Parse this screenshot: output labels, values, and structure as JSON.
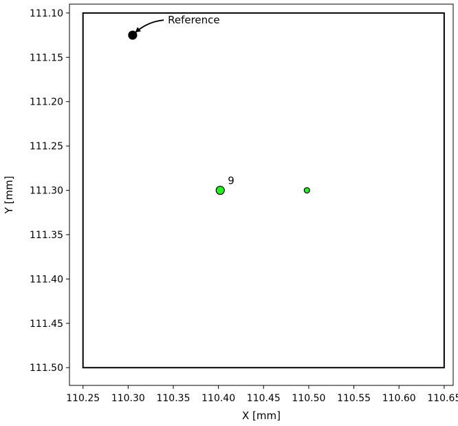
{
  "chart_data": {
    "type": "scatter",
    "xlabel": "X [mm]",
    "ylabel": "Y [mm]",
    "xlim": [
      110.235,
      110.66
    ],
    "ylim": [
      111.52,
      111.09
    ],
    "y_inverted": true,
    "grid": false,
    "x_ticks": [
      "110.25",
      "110.30",
      "110.35",
      "110.40",
      "110.45",
      "110.50",
      "110.55",
      "110.60",
      "110.65"
    ],
    "y_ticks": [
      "111.10",
      "111.15",
      "111.20",
      "111.25",
      "111.30",
      "111.35",
      "111.40",
      "111.45",
      "111.50"
    ],
    "boundary_rectangle": {
      "x_min": 110.25,
      "x_max": 110.65,
      "y_min": 111.1,
      "y_max": 111.5,
      "color": "#000000"
    },
    "points": [
      {
        "name": "reference",
        "x": 110.305,
        "y": 111.125,
        "color": "#000000",
        "size": "medium"
      },
      {
        "name": "point-9",
        "x": 110.402,
        "y": 111.3,
        "color": "#22ee22",
        "size": "medium",
        "label": "9"
      },
      {
        "name": "point-small",
        "x": 110.498,
        "y": 111.3,
        "color": "#22ee22",
        "size": "small"
      }
    ],
    "annotations": [
      {
        "text": "Reference",
        "x": 110.344,
        "y": 111.108,
        "arrow_to": "reference"
      }
    ]
  }
}
